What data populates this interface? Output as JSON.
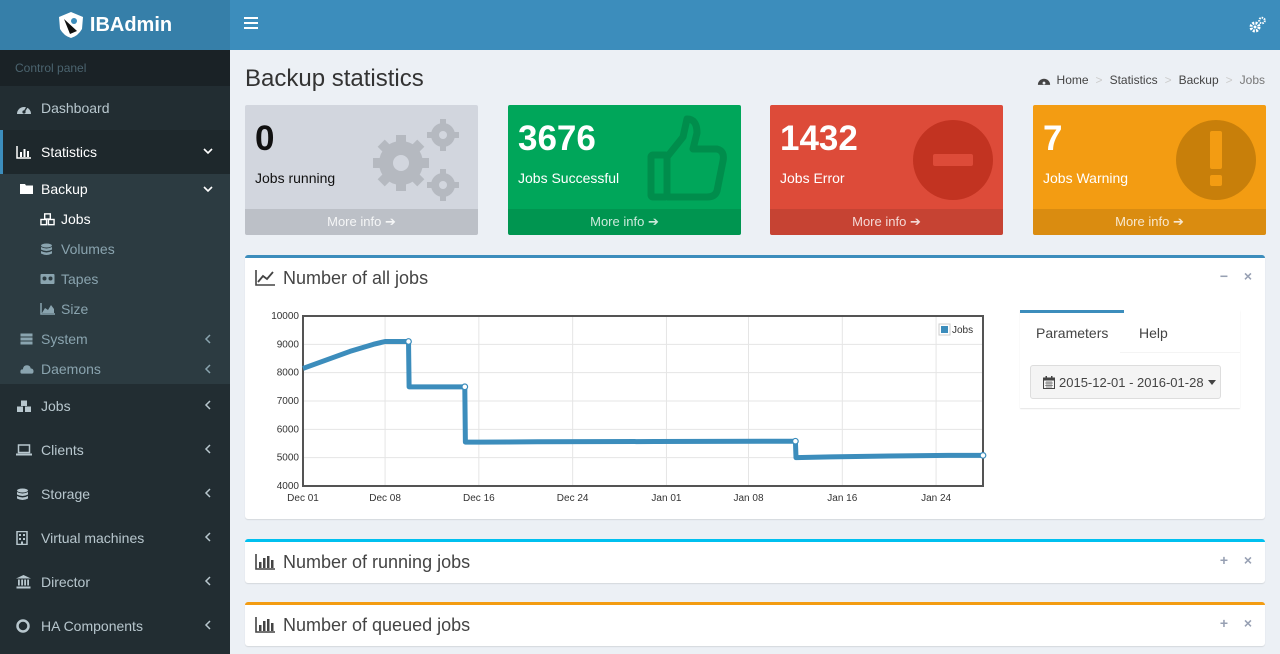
{
  "app": {
    "name": "IBAdmin"
  },
  "sidebar": {
    "header": "Control panel",
    "items": [
      {
        "label": "Dashboard",
        "icon": "dashboard-icon"
      },
      {
        "label": "Statistics",
        "icon": "bar-chart-icon"
      },
      {
        "label": "Jobs",
        "icon": "cubes-icon"
      },
      {
        "label": "Clients",
        "icon": "laptop-icon"
      },
      {
        "label": "Storage",
        "icon": "database-icon"
      },
      {
        "label": "Virtual machines",
        "icon": "building-icon"
      },
      {
        "label": "Director",
        "icon": "bank-icon"
      },
      {
        "label": "HA Components",
        "icon": "lifebuoy-icon"
      }
    ],
    "statistics_sub": {
      "backup": "Backup",
      "backup_items": [
        "Jobs",
        "Volumes",
        "Tapes",
        "Size"
      ],
      "system": "System",
      "daemons": "Daemons"
    }
  },
  "page": {
    "title": "Backup statistics"
  },
  "breadcrumb": [
    "Home",
    "Statistics",
    "Backup",
    "Jobs"
  ],
  "stat_boxes": [
    {
      "number": "0",
      "label": "Jobs running",
      "more": "More info",
      "color": "#d2d6de",
      "icon": "cogs-icon"
    },
    {
      "number": "3676",
      "label": "Jobs Successful",
      "more": "More info",
      "color": "#00a65a",
      "icon": "thumbs-up-icon"
    },
    {
      "number": "1432",
      "label": "Jobs Error",
      "more": "More info",
      "color": "#dd4b39",
      "icon": "minus-circle-icon"
    },
    {
      "number": "7",
      "label": "Jobs Warning",
      "more": "More info",
      "color": "#f39c12",
      "icon": "exclamation-circle-icon"
    }
  ],
  "boxes": {
    "all_jobs": {
      "title": "Number of all jobs",
      "accent": "#3c8dbc"
    },
    "running_jobs": {
      "title": "Number of running jobs",
      "accent": "#00c0ef"
    },
    "queued_jobs": {
      "title": "Number of queued jobs",
      "accent": "#f39c12"
    }
  },
  "params": {
    "tabs": [
      "Parameters",
      "Help"
    ],
    "daterange": "2015-12-01 - 2016-01-28"
  },
  "chart_data": {
    "type": "line",
    "title": "",
    "xlabel": "",
    "ylabel": "",
    "ylim": [
      4000,
      10000
    ],
    "yticks": [
      4000,
      5000,
      6000,
      7000,
      8000,
      9000,
      10000
    ],
    "xticks": [
      "Dec 01",
      "Dec 08",
      "Dec 16",
      "Dec 24",
      "Jan 01",
      "Jan 08",
      "Jan 16",
      "Jan 24"
    ],
    "xtick_days": [
      0,
      7,
      15,
      23,
      31,
      38,
      46,
      54
    ],
    "xlim_days": [
      0,
      58
    ],
    "legend": "top-right",
    "grid": true,
    "color": "#3c8dbc",
    "series": [
      {
        "name": "Jobs",
        "x_days": [
          0,
          2,
          4,
          6,
          7,
          8,
          9,
          9.05,
          11,
          13,
          13.8,
          13.85,
          15,
          20,
          30,
          40,
          42,
          42.05,
          45,
          50,
          55,
          58
        ],
        "values": [
          8150,
          8450,
          8750,
          9000,
          9100,
          9100,
          9100,
          7500,
          7500,
          7500,
          7500,
          5550,
          5550,
          5560,
          5570,
          5580,
          5580,
          5000,
          5030,
          5060,
          5080,
          5080
        ]
      }
    ]
  }
}
